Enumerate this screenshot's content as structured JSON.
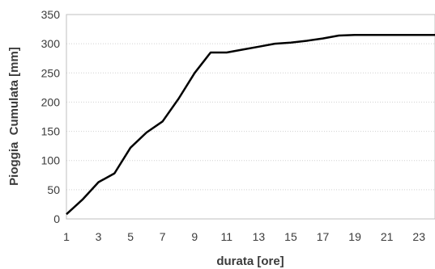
{
  "chart_data": {
    "type": "line",
    "title": "",
    "xlabel": "durata [ore]",
    "ylabel": "Pioggia  Cumulata [mm]",
    "xlim": [
      1,
      24
    ],
    "ylim": [
      0,
      350
    ],
    "x_ticks": [
      "1",
      "3",
      "5",
      "7",
      "9",
      "11",
      "13",
      "15",
      "17",
      "19",
      "21",
      "23"
    ],
    "y_ticks": [
      "0",
      "50",
      "100",
      "150",
      "200",
      "250",
      "300",
      "350"
    ],
    "grid": "horizontal",
    "legend": "none",
    "series": [
      {
        "color": "#000000",
        "x": [
          1,
          2,
          3,
          4,
          5,
          6,
          7,
          8,
          9,
          10,
          11,
          12,
          13,
          14,
          15,
          16,
          17,
          18,
          19,
          20,
          21,
          22,
          23,
          24
        ],
        "values": [
          8,
          33,
          63,
          78,
          122,
          148,
          167,
          206,
          250,
          285,
          285,
          290,
          295,
          300,
          302,
          305,
          309,
          314,
          315,
          315,
          315,
          315,
          315,
          315
        ]
      }
    ]
  }
}
